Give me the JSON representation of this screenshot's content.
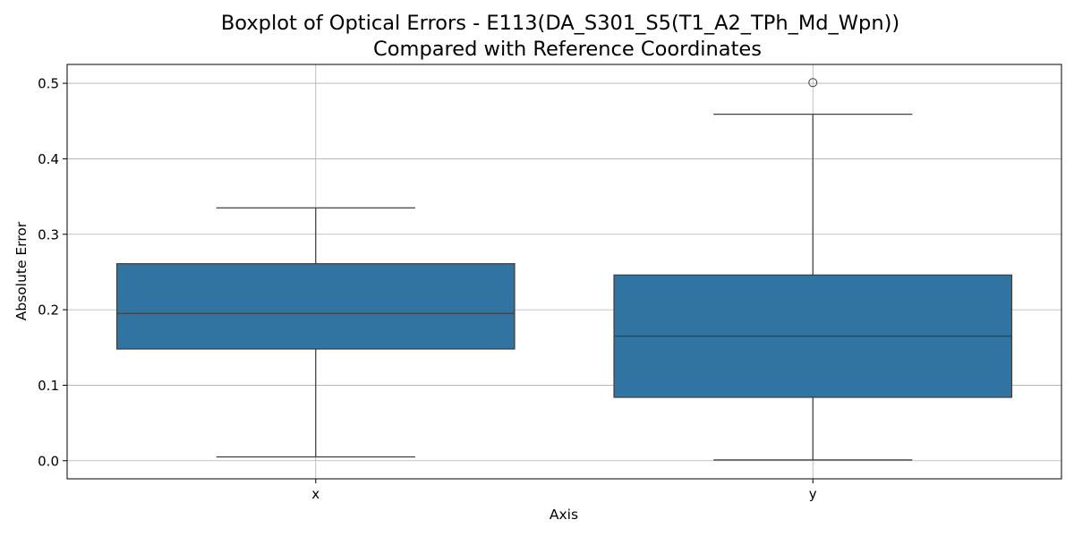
{
  "chart_data": {
    "type": "box",
    "title_line1": "Boxplot of Optical Errors - E113(DA_S301_S5(T1_A2_TPh_Md_Wpn))",
    "title_line2": "Compared with Reference Coordinates",
    "xlabel": "Axis",
    "ylabel": "Absolute Error",
    "ylim": [
      -0.024,
      0.525
    ],
    "yticks": [
      0.0,
      0.1,
      0.2,
      0.3,
      0.4,
      0.5
    ],
    "ytick_labels": [
      "0.0",
      "0.1",
      "0.2",
      "0.3",
      "0.4",
      "0.5"
    ],
    "categories": [
      "x",
      "y"
    ],
    "grid": true,
    "box_color": "#3274a1",
    "line_color": "#3f3f3f",
    "boxes": [
      {
        "category": "x",
        "whisker_low": 0.005,
        "q1": 0.148,
        "median": 0.195,
        "q3": 0.261,
        "whisker_high": 0.335,
        "fliers": []
      },
      {
        "category": "y",
        "whisker_low": 0.001,
        "q1": 0.084,
        "median": 0.165,
        "q3": 0.246,
        "whisker_high": 0.459,
        "fliers": [
          0.501
        ]
      }
    ]
  }
}
